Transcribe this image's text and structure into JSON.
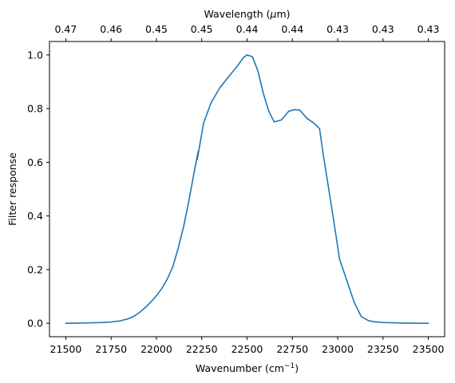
{
  "chart_data": {
    "type": "line",
    "xlabel": "Wavenumber (cm",
    "xlabel_sup": "−1",
    "xlabel_suffix": ")",
    "ylabel": "Filter response",
    "top_xlabel": "Wavelength (",
    "top_xlabel_mu": "μ",
    "top_xlabel_suffix": "m)",
    "xlim": [
      21410,
      23590
    ],
    "ylim": [
      -0.05,
      1.05
    ],
    "x_ticks": [
      21500,
      21750,
      22000,
      22250,
      22500,
      22750,
      23000,
      23250,
      23500
    ],
    "x_tick_labels": [
      "21500",
      "21750",
      "22000",
      "22250",
      "22500",
      "22750",
      "23000",
      "23250",
      "23500"
    ],
    "y_ticks": [
      0.0,
      0.2,
      0.4,
      0.6,
      0.8,
      1.0
    ],
    "y_tick_labels": [
      "0.0",
      "0.2",
      "0.4",
      "0.6",
      "0.8",
      "1.0"
    ],
    "top_ticks": [
      21500,
      21750,
      22000,
      22250,
      22500,
      22750,
      23000,
      23250,
      23500
    ],
    "top_tick_labels": [
      "0.47",
      "0.46",
      "0.45",
      "0.45",
      "0.44",
      "0.44",
      "0.43",
      "0.43",
      "0.43"
    ],
    "grid": false,
    "series": [
      {
        "color": "#1f77b4",
        "segments": [
          {
            "x": [
              21500,
              21600,
              21700,
              21750,
              21800,
              21850,
              21880,
              21910,
              21940,
              21970,
              22000,
              22030,
              22060,
              22090,
              22120,
              22150,
              22180,
              22210,
              22230
            ],
            "y": [
              0.0,
              0.001,
              0.003,
              0.005,
              0.009,
              0.018,
              0.028,
              0.042,
              0.06,
              0.08,
              0.103,
              0.13,
              0.165,
              0.21,
              0.28,
              0.36,
              0.46,
              0.57,
              0.64
            ]
          },
          {
            "x": [
              22225,
              22260,
              22300,
              22350,
              22400,
              22450,
              22480,
              22500,
              22530,
              22560,
              22590,
              22620,
              22650,
              22690,
              22730,
              22760,
              22790,
              22830,
              22870,
              22900,
              22920,
              22940,
              22960,
              22990,
              23010,
              23030,
              23060,
              23090,
              23130,
              23170,
              23200,
              23250,
              23350,
              23500
            ],
            "y": [
              0.61,
              0.745,
              0.82,
              0.878,
              0.92,
              0.962,
              0.99,
              1.0,
              0.993,
              0.94,
              0.856,
              0.79,
              0.75,
              0.758,
              0.79,
              0.796,
              0.795,
              0.764,
              0.745,
              0.725,
              0.63,
              0.545,
              0.46,
              0.33,
              0.24,
              0.2,
              0.14,
              0.08,
              0.025,
              0.01,
              0.006,
              0.003,
              0.001,
              0.0
            ]
          }
        ]
      }
    ]
  }
}
